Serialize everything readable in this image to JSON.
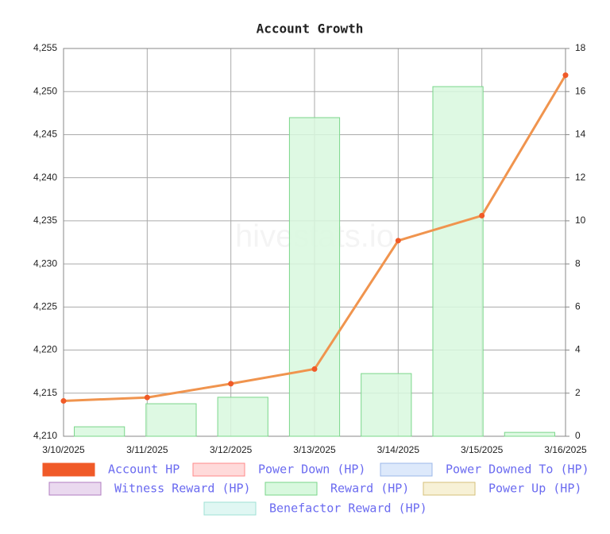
{
  "chart_data": {
    "type": "bar-line",
    "title": "Account Growth",
    "watermark": "hivestats.io",
    "categories": [
      "3/10/2025",
      "3/11/2025",
      "3/12/2025",
      "3/13/2025",
      "3/14/2025",
      "3/15/2025",
      "3/16/2025"
    ],
    "series": [
      {
        "name": "Account HP",
        "kind": "line",
        "color": "#f05a28",
        "line_color": "#f0944e",
        "values": [
          4214.1,
          4214.5,
          4216.1,
          4217.8,
          4232.7,
          4235.6,
          4251.9
        ]
      },
      {
        "name": "Power Down (HP)",
        "color": "#ffdada",
        "stroke": "#ff8a8a"
      },
      {
        "name": "Power Downed To (HP)",
        "color": "#dde9fb",
        "stroke": "#9cb8e8"
      },
      {
        "name": "Witness Reward (HP)",
        "color": "#ead9ef",
        "stroke": "#b07cc0"
      },
      {
        "name": "Reward (HP)",
        "kind": "bar",
        "axis": "y2",
        "color": "#d8f8de",
        "stroke": "#7ad68a",
        "values": [
          0.44,
          1.51,
          1.81,
          14.79,
          2.91,
          16.23,
          0.18
        ]
      },
      {
        "name": "Power Up (HP)",
        "color": "#f7f1d6",
        "stroke": "#d4c07a"
      },
      {
        "name": "Benefactor Reward (HP)",
        "color": "#e0f7f3",
        "stroke": "#9fe0d6"
      }
    ],
    "ylim": [
      4210,
      4255
    ],
    "yticks": [
      {
        "value": 4210,
        "label": "4,210"
      },
      {
        "value": 4215,
        "label": "4,215"
      },
      {
        "value": 4220,
        "label": "4,220"
      },
      {
        "value": 4225,
        "label": "4,225"
      },
      {
        "value": 4230,
        "label": "4,230"
      },
      {
        "value": 4235,
        "label": "4,235"
      },
      {
        "value": 4240,
        "label": "4,240"
      },
      {
        "value": 4245,
        "label": "4,245"
      },
      {
        "value": 4250,
        "label": "4,250"
      },
      {
        "value": 4255,
        "label": "4,255"
      }
    ],
    "y2lim": [
      0,
      18
    ],
    "y2ticks": [
      0,
      2,
      4,
      6,
      8,
      10,
      12,
      14,
      16,
      18
    ],
    "grid": true
  }
}
